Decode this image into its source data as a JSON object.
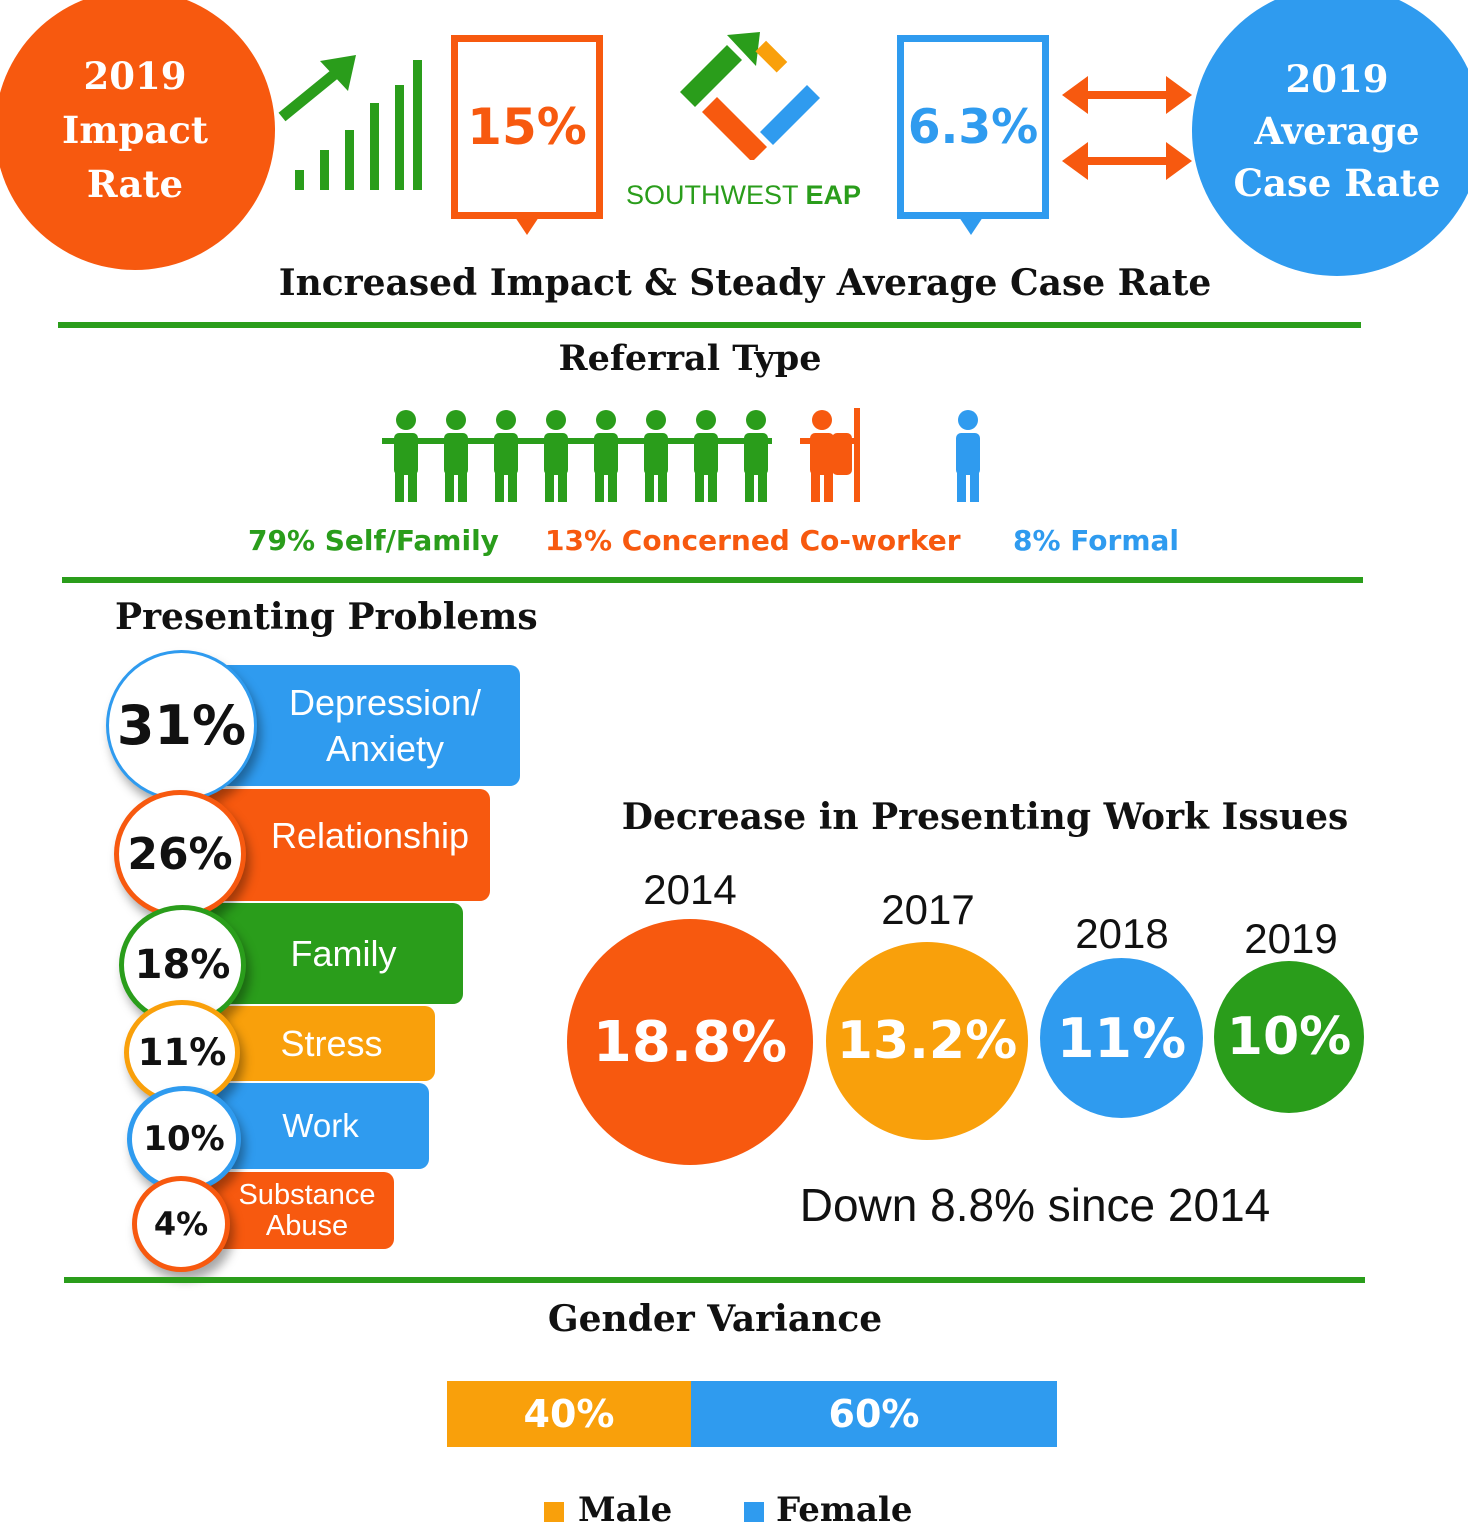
{
  "impact": {
    "label_line1": "2019",
    "label_line2": "Impact",
    "label_line3": "Rate",
    "value": "15%"
  },
  "average": {
    "label_line1": "2019",
    "label_line2": "Average",
    "label_line3": "Case Rate",
    "value": "6.3%"
  },
  "brand": {
    "name_part1": "SOUTHWEST",
    "name_part2": "EAP"
  },
  "headline": "Increased Impact & Steady Average Case Rate",
  "referral": {
    "title": "Referral Type",
    "items": [
      {
        "label": "79% Self/Family",
        "color": "#2a9d1b"
      },
      {
        "label": "13% Concerned Co-worker",
        "color": "#f7590f"
      },
      {
        "label": "8% Formal",
        "color": "#2f9bef"
      }
    ]
  },
  "presenting": {
    "title": "Presenting Problems",
    "items": [
      {
        "pct": "31%",
        "label_line1": "Depression/",
        "label_line2": "Anxiety",
        "color": "#2f9bef"
      },
      {
        "pct": "26%",
        "label_line1": "Relationship",
        "label_line2": "",
        "color": "#f7590f"
      },
      {
        "pct": "18%",
        "label_line1": "Family",
        "label_line2": "",
        "color": "#2a9d1b"
      },
      {
        "pct": "11%",
        "label_line1": "Stress",
        "label_line2": "",
        "color": "#f9a00b"
      },
      {
        "pct": "10%",
        "label_line1": "Work",
        "label_line2": "",
        "color": "#2f9bef"
      },
      {
        "pct": "4%",
        "label_line1": "Substance",
        "label_line2": "Abuse",
        "color": "#f7590f"
      }
    ]
  },
  "work_issues": {
    "title": "Decrease in Presenting Work Issues",
    "years": [
      {
        "year": "2014",
        "value": "18.8%",
        "color": "#f7590f"
      },
      {
        "year": "2017",
        "value": "13.2%",
        "color": "#f9a00b"
      },
      {
        "year": "2018",
        "value": "11%",
        "color": "#2f9bef"
      },
      {
        "year": "2019",
        "value": "10%",
        "color": "#2a9d1b"
      }
    ],
    "note": "Down 8.8% since 2014"
  },
  "gender": {
    "title": "Gender Variance",
    "male_pct": "40%",
    "female_pct": "60%",
    "male_fraction": 0.4,
    "male_label": "Male",
    "female_label": "Female",
    "male_color": "#f9a00b",
    "female_color": "#2f9bef"
  }
}
